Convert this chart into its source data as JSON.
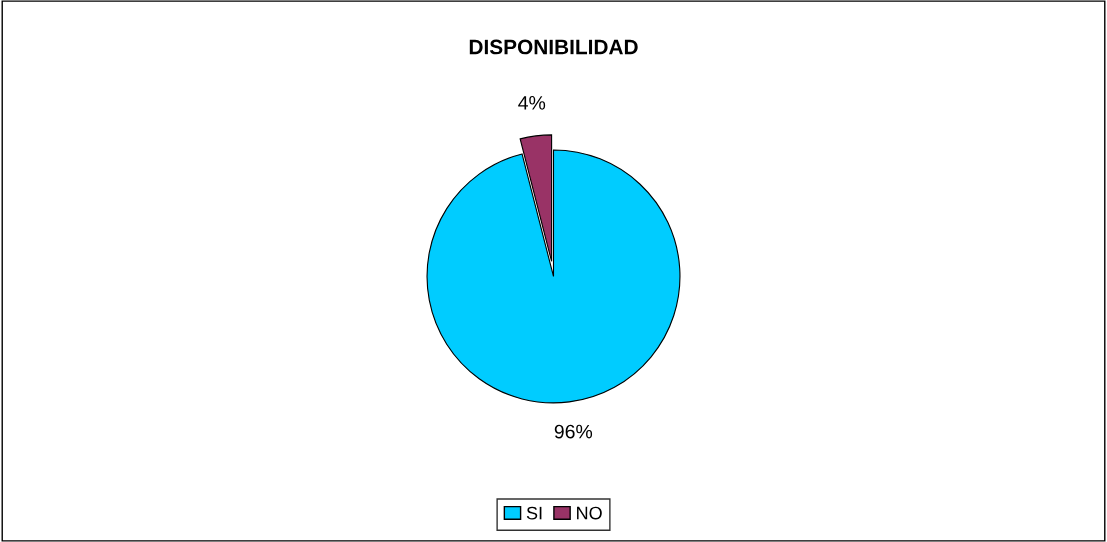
{
  "chart_data": {
    "type": "pie",
    "title": "DISPONIBILIDAD",
    "categories": [
      "SI",
      "NO"
    ],
    "values": [
      96,
      4
    ],
    "colors": [
      "#00ccff",
      "#993366"
    ],
    "value_labels": [
      "96%",
      "4%"
    ],
    "legend": "bottom"
  }
}
